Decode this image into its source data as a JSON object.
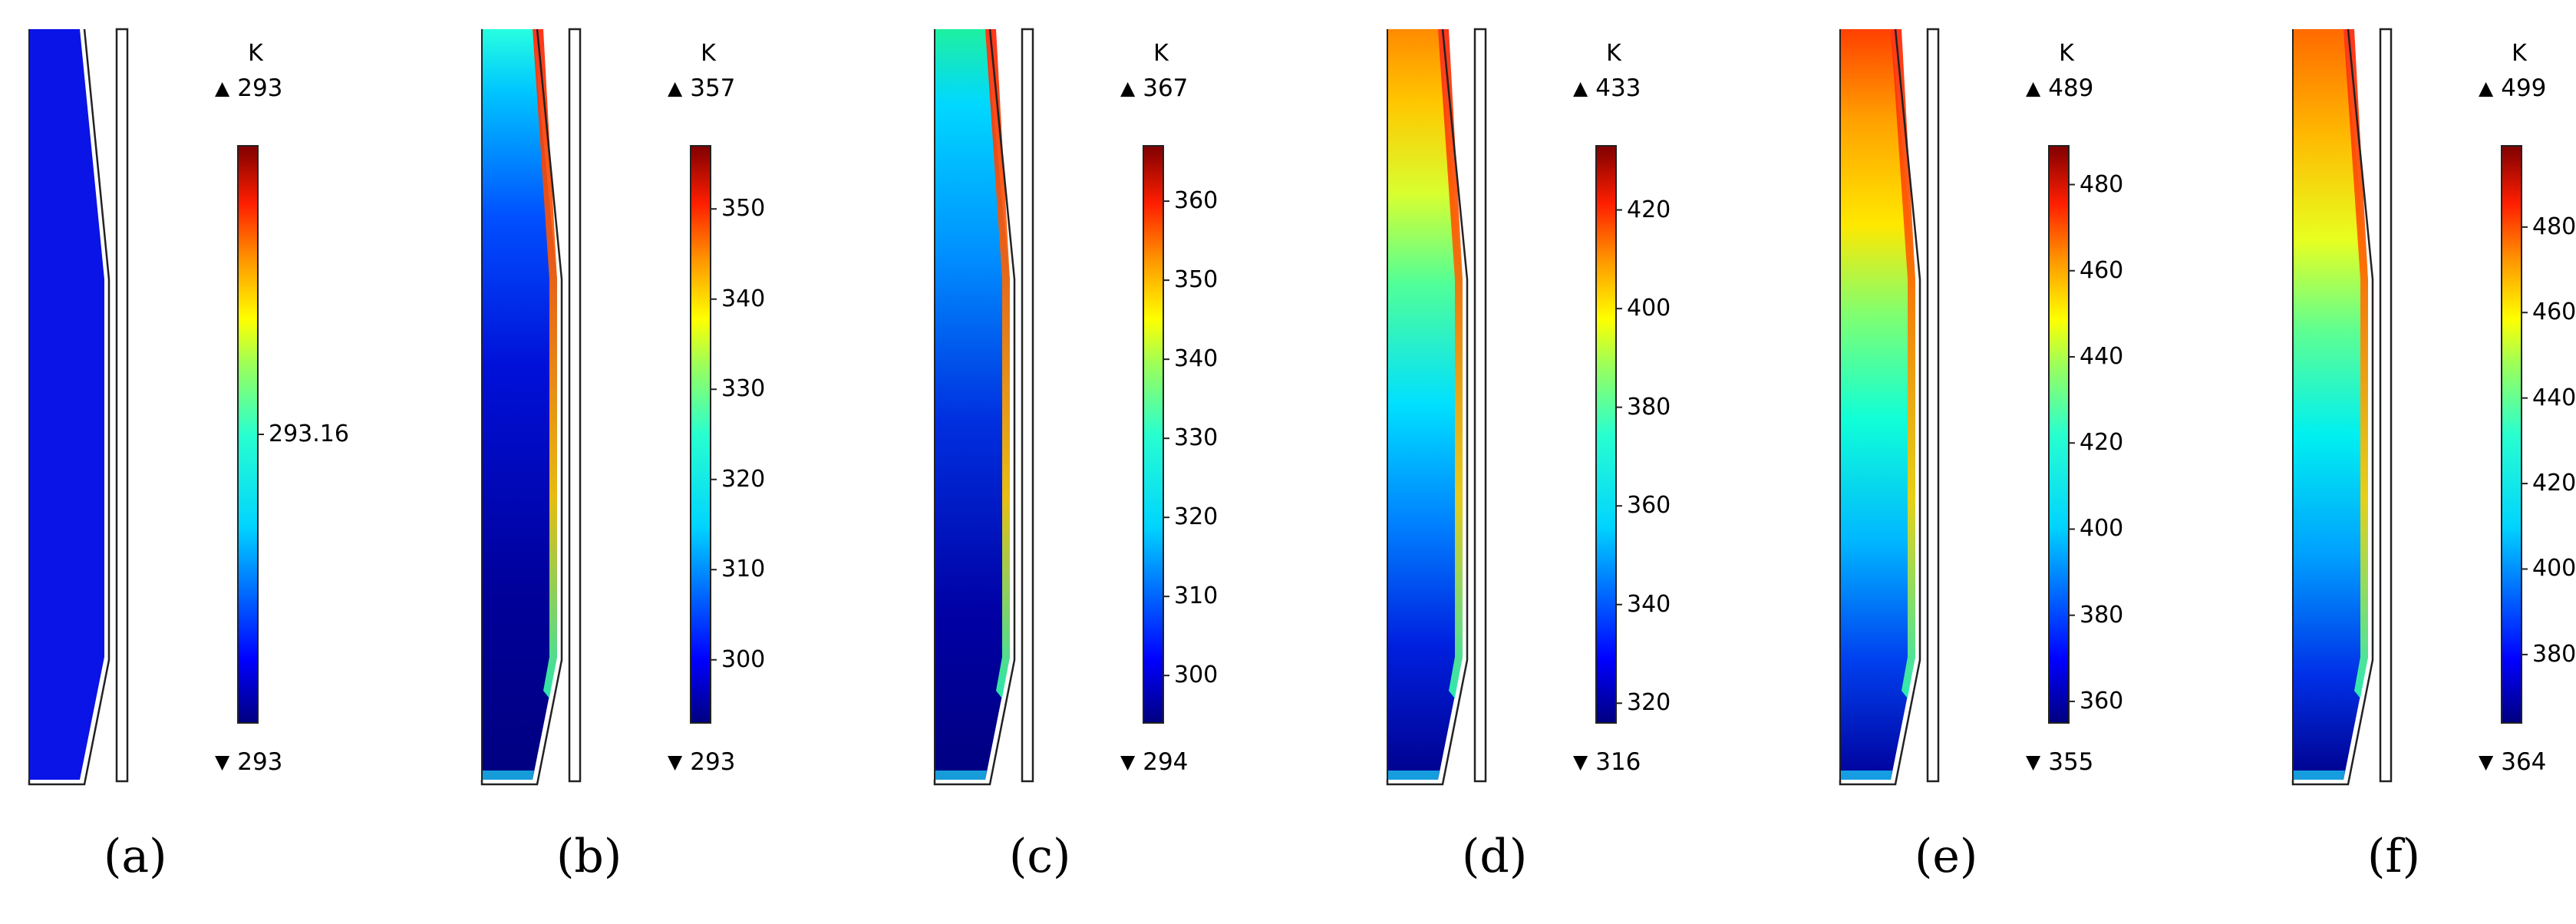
{
  "unit_label": "K",
  "panels": [
    {
      "label": "(a)",
      "max_label": "293",
      "min_label": "293",
      "ticks": [
        "293.16"
      ],
      "tick_values": [
        293.16
      ],
      "range": [
        292.96,
        293.36
      ],
      "field": "uniform"
    },
    {
      "label": "(b)",
      "max_label": "357",
      "min_label": "293",
      "ticks": [
        "350",
        "340",
        "330",
        "320",
        "310",
        "300"
      ],
      "tick_values": [
        350,
        340,
        330,
        320,
        310,
        300
      ],
      "range": [
        293,
        357
      ],
      "field": "b"
    },
    {
      "label": "(c)",
      "max_label": "367",
      "min_label": "294",
      "ticks": [
        "360",
        "350",
        "340",
        "330",
        "320",
        "310",
        "300"
      ],
      "tick_values": [
        360,
        350,
        340,
        330,
        320,
        310,
        300
      ],
      "range": [
        294,
        367
      ],
      "field": "c"
    },
    {
      "label": "(d)",
      "max_label": "433",
      "min_label": "316",
      "ticks": [
        "420",
        "400",
        "380",
        "360",
        "340",
        "320"
      ],
      "tick_values": [
        420,
        400,
        380,
        360,
        340,
        320
      ],
      "range": [
        316,
        433
      ],
      "field": "d"
    },
    {
      "label": "(e)",
      "max_label": "489",
      "min_label": "355",
      "ticks": [
        "480",
        "460",
        "440",
        "420",
        "400",
        "380",
        "360"
      ],
      "tick_values": [
        480,
        460,
        440,
        420,
        400,
        380,
        360
      ],
      "range": [
        355,
        489
      ],
      "field": "e"
    },
    {
      "label": "(f)",
      "max_label": "499",
      "min_label": "364",
      "ticks": [
        "480",
        "460",
        "440",
        "420",
        "400",
        "380"
      ],
      "tick_values": [
        480,
        460,
        440,
        420,
        400,
        380
      ],
      "range": [
        364,
        499
      ],
      "field": "f"
    }
  ],
  "colors": {
    "jet_low": "#00007f",
    "jet_high": "#7f0000",
    "uniform_fill": "#0a14e6"
  }
}
